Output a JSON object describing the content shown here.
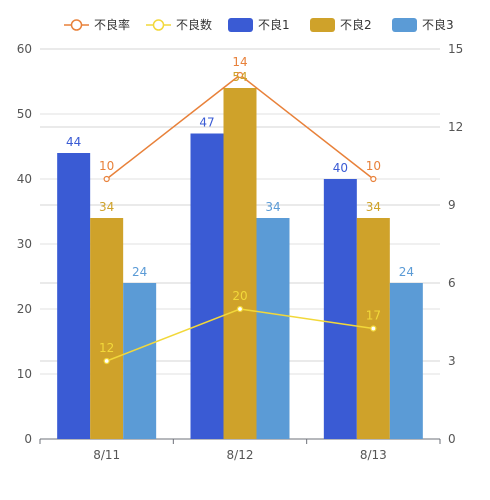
{
  "chart_data": {
    "type": "bar",
    "categories": [
      "8/11",
      "8/12",
      "8/13"
    ],
    "y_left": {
      "min": 0,
      "max": 60,
      "ticks": [
        0,
        10,
        20,
        30,
        40,
        50,
        60
      ]
    },
    "y_right": {
      "min": 0,
      "max": 15,
      "ticks": [
        0,
        3,
        6,
        9,
        12,
        15
      ]
    },
    "grid": true,
    "legend_position": "top-center",
    "series": [
      {
        "name": "不良率",
        "kind": "line",
        "axis": "right",
        "color": "#e8813a",
        "values": [
          10,
          14,
          10
        ]
      },
      {
        "name": "不良数",
        "kind": "line",
        "axis": "left",
        "color": "#f2d83a",
        "values": [
          12,
          20,
          17
        ]
      },
      {
        "name": "不良1",
        "kind": "bar",
        "axis": "left",
        "color": "#3a5bd4",
        "values": [
          44,
          47,
          40
        ]
      },
      {
        "name": "不良2",
        "kind": "bar",
        "axis": "left",
        "color": "#cfa22a",
        "values": [
          34,
          54,
          34
        ]
      },
      {
        "name": "不良3",
        "kind": "bar",
        "axis": "left",
        "color": "#5b9bd6",
        "values": [
          24,
          34,
          24
        ]
      }
    ]
  }
}
